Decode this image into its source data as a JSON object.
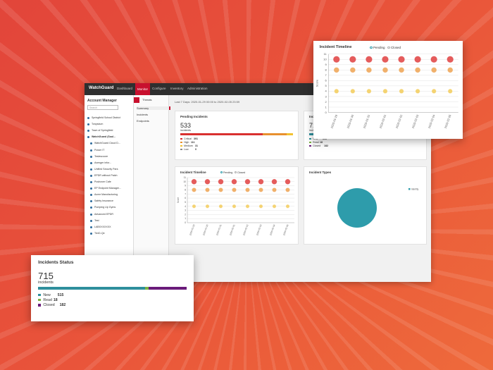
{
  "nav": {
    "logo": "WatchGuard",
    "tabs": [
      "Dashboard",
      "Monitor",
      "Configure",
      "Inventory",
      "Administration"
    ]
  },
  "sidebar": {
    "title": "Account Manager",
    "search": "Search",
    "accounts": [
      "Springfield School District",
      "Tonysdum",
      "Town of Springfield",
      "WatchGuard (Soul...",
      "WatchGuard Cloud D...",
      "Power IT",
      "Teslescoure",
      "Avenger infor...",
      "Unified Security Pars",
      "EPDR without Patch",
      "Pushover Cafe",
      "EP Endpoint Manager...",
      "Acme Manufacturing",
      "Safety Insurance",
      "Pumping Up Gyms",
      "Advanced EPDR",
      "Test",
      "LABXXXXXXX",
      "TierD-Qe"
    ]
  },
  "threats_menu": {
    "title": "Threats",
    "items": [
      "Summary",
      "Incidents",
      "Endpoints"
    ]
  },
  "date_range": "Last 7 Days: 2020-01-29 00:00 to 2020-02-05 23:59",
  "chart_data": [
    {
      "type": "stacked-bar",
      "title": "Pending Incidents",
      "total": 533,
      "unit": "incidents",
      "series": [
        {
          "name": "Critical",
          "color": "#d9302f",
          "values": [
            391
          ]
        },
        {
          "name": "High",
          "color": "#e8902e",
          "values": [
            111
          ]
        },
        {
          "name": "Medium",
          "color": "#f2c230",
          "values": [
            31
          ]
        },
        {
          "name": "Low",
          "color": "#8a8a8a",
          "values": [
            0
          ]
        }
      ]
    },
    {
      "type": "stacked-bar",
      "title": "Incidents Status",
      "total": 715,
      "unit": "incidents",
      "series": [
        {
          "name": "New",
          "color": "#2e8f9c",
          "values": [
            515
          ]
        },
        {
          "name": "Read",
          "color": "#7cb342",
          "values": [
            18
          ]
        },
        {
          "name": "Closed",
          "color": "#6a1b7a",
          "values": [
            182
          ]
        }
      ]
    },
    {
      "type": "scatter",
      "title": "Incident Timeline",
      "legend": [
        "Pending",
        "Closed"
      ],
      "ylabel": "Score",
      "x": [
        "2020-01-29",
        "2020-01-30",
        "2020-01-31",
        "2020-02-01",
        "2020-02-02",
        "2020-02-03",
        "2020-02-04",
        "2020-02-05"
      ],
      "ylim": [
        0,
        11
      ],
      "yticks": [
        0,
        1,
        2,
        3,
        4,
        5,
        6,
        7,
        8,
        9,
        10,
        11
      ],
      "grid": true,
      "series": [
        {
          "color": "#e0403f",
          "values": [
            10,
            10,
            10,
            10,
            10,
            10,
            10,
            10
          ]
        },
        {
          "color": "#eea352",
          "values": [
            8,
            8,
            8,
            8,
            8,
            8,
            8,
            8
          ]
        },
        {
          "color": "#f3cc5a",
          "values": [
            4,
            4,
            4,
            4,
            4,
            4,
            4,
            4
          ]
        }
      ]
    },
    {
      "type": "pie",
      "title": "Incident Types",
      "categories": [
        "Identity"
      ],
      "values": [
        100
      ],
      "colors": [
        "#2e9cab"
      ]
    }
  ]
}
